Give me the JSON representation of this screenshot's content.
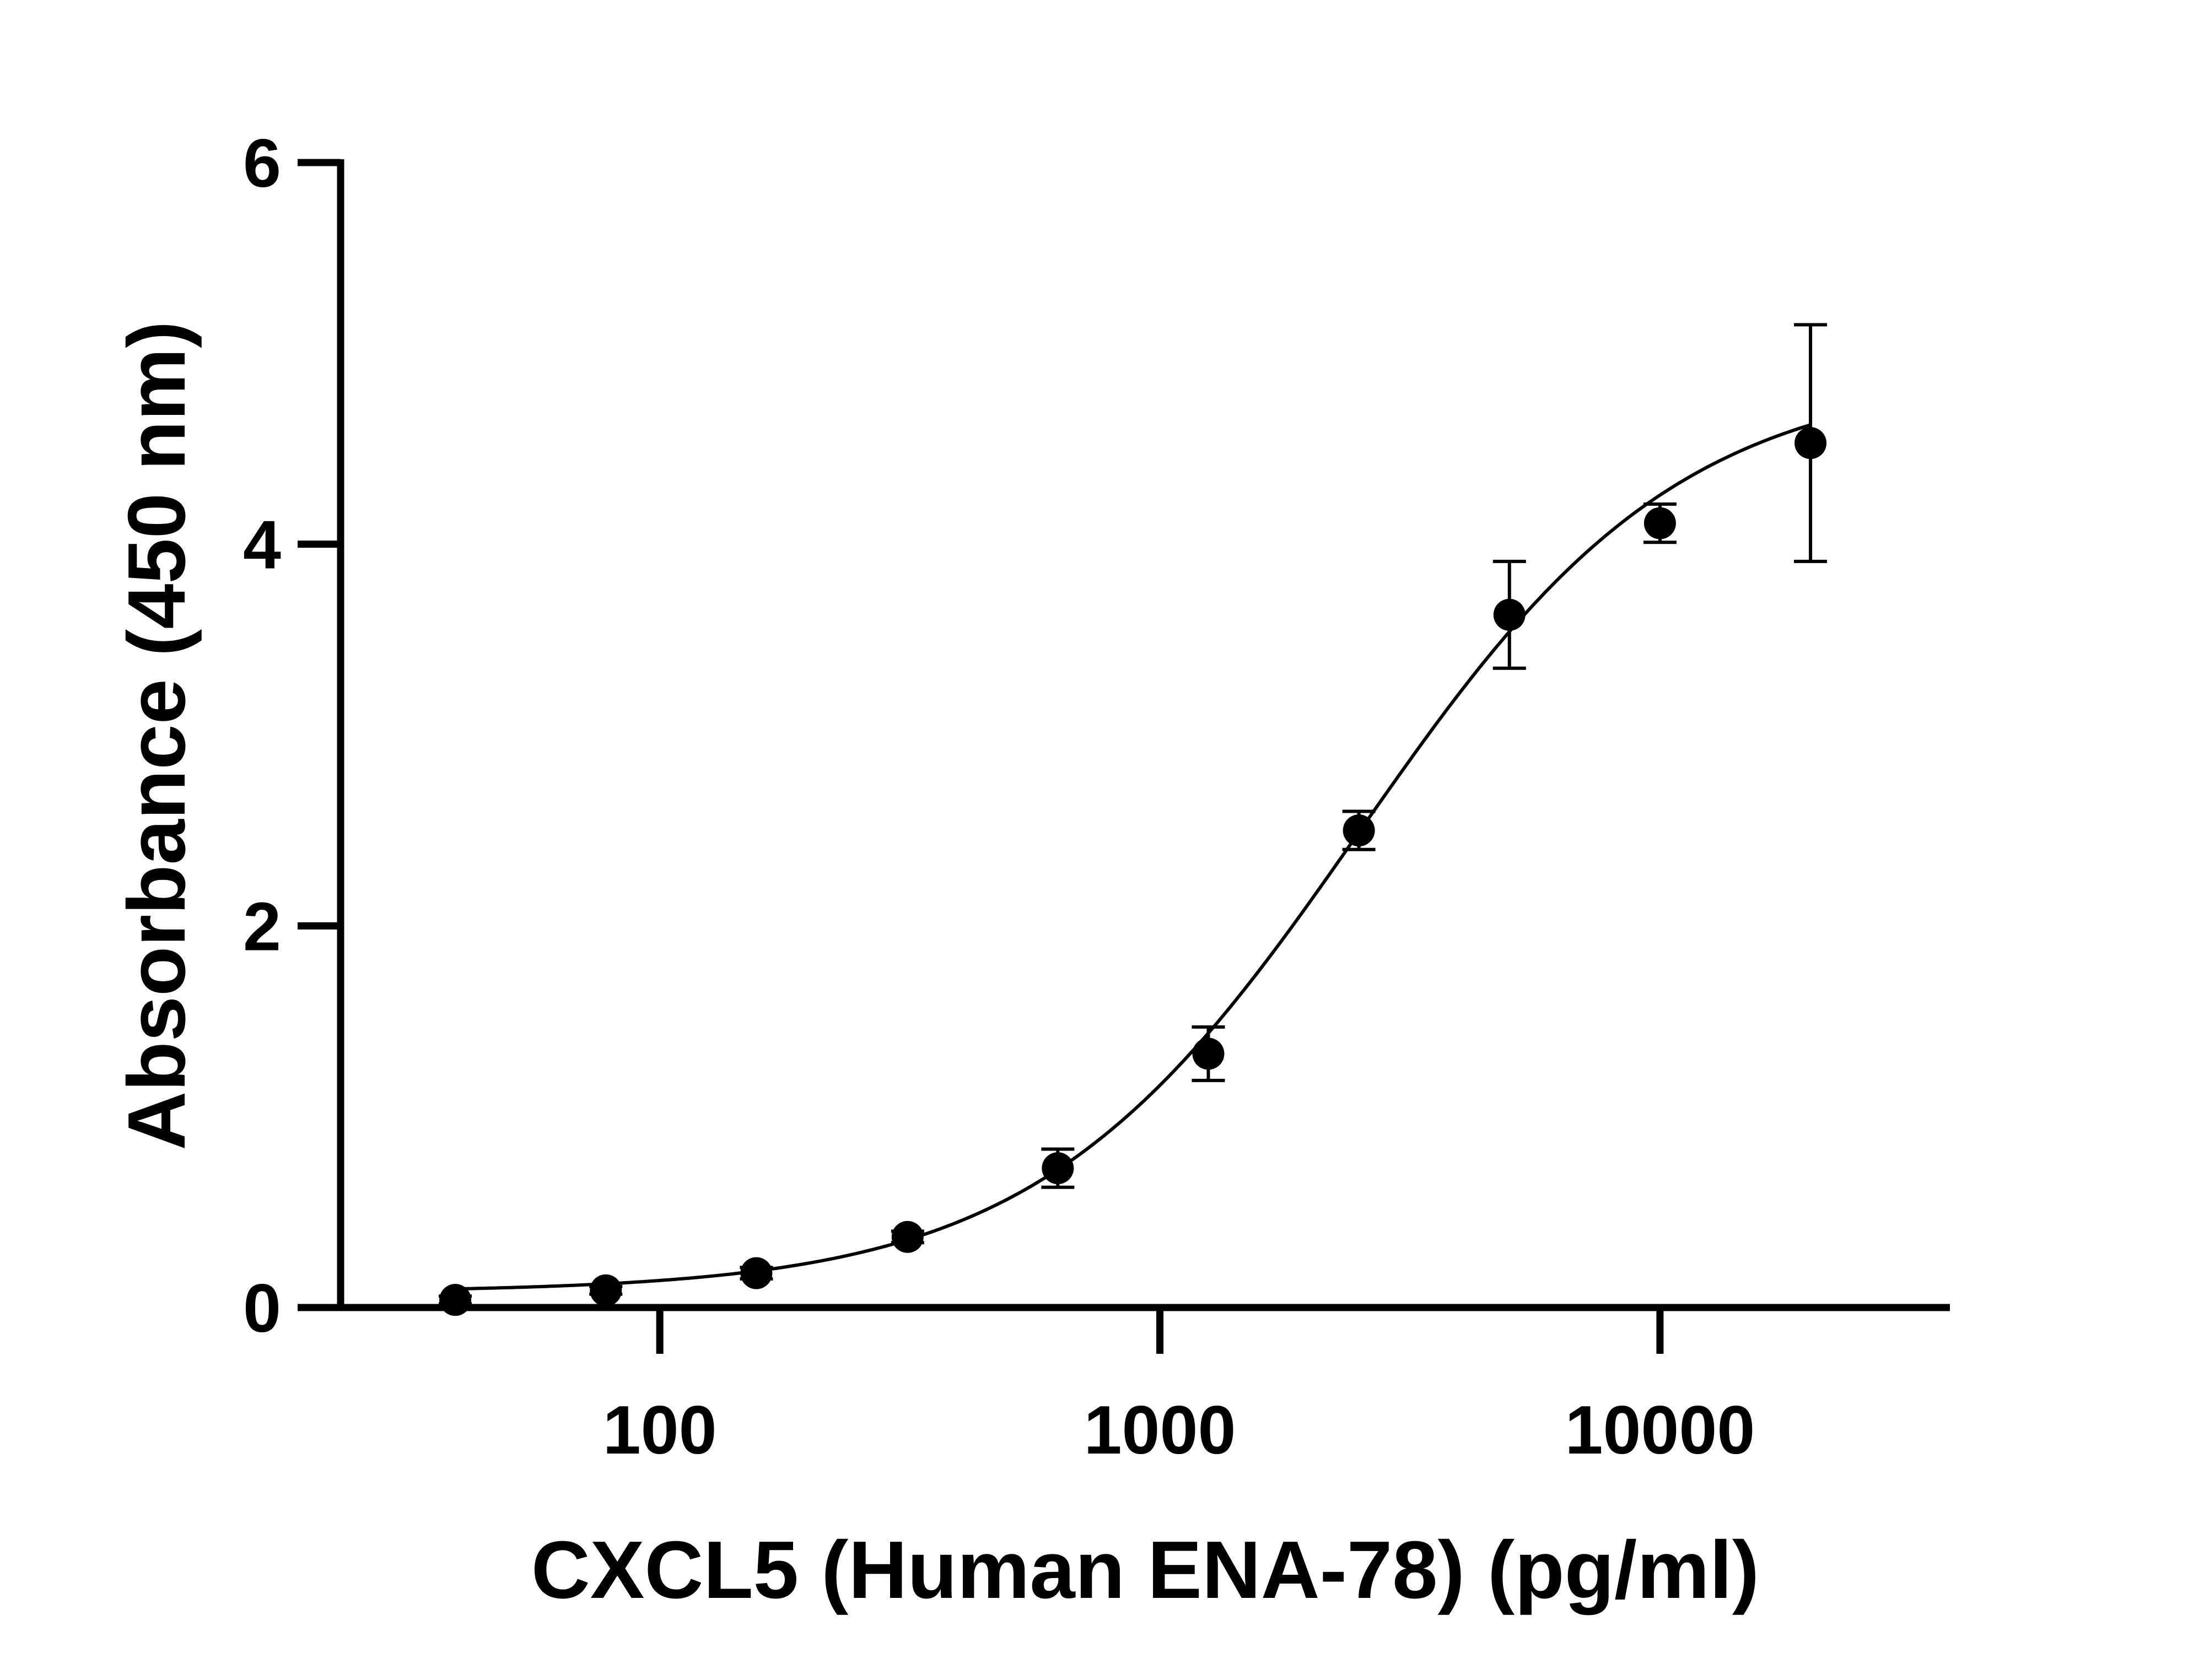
{
  "chart_data": {
    "type": "scatter",
    "title": "",
    "xlabel": "CXCL5 (Human ENA-78) (pg/ml)",
    "ylabel": "Absorbance (450 nm)",
    "x_scale": "log",
    "xlim": [
      23,
      38000
    ],
    "ylim": [
      0,
      6
    ],
    "x_ticks": [
      100,
      1000,
      10000
    ],
    "x_tick_labels": [
      "100",
      "1000",
      "10000"
    ],
    "y_ticks": [
      0,
      2,
      4,
      6
    ],
    "y_tick_labels": [
      "0",
      "2",
      "4",
      "6"
    ],
    "grid": false,
    "legend": "none",
    "series": [
      {
        "points": [
          {
            "x": 39,
            "y": 0.04,
            "err": 0.02
          },
          {
            "x": 78,
            "y": 0.09,
            "err": 0.02
          },
          {
            "x": 156,
            "y": 0.18,
            "err": 0.03
          },
          {
            "x": 313,
            "y": 0.37,
            "err": 0.03
          },
          {
            "x": 625,
            "y": 0.73,
            "err": 0.1
          },
          {
            "x": 1250,
            "y": 1.33,
            "err": 0.14
          },
          {
            "x": 2500,
            "y": 2.5,
            "err": 0.1
          },
          {
            "x": 5000,
            "y": 3.63,
            "err": 0.28
          },
          {
            "x": 10000,
            "y": 4.11,
            "err": 0.1
          },
          {
            "x": 20000,
            "y": 4.53,
            "err": 0.62
          }
        ]
      }
    ],
    "fit": {
      "model": "4PL",
      "bottom": 0.08,
      "top": 4.9,
      "ec50": 2500,
      "hill": 1.35,
      "x_from": 39,
      "x_to": 20000
    }
  }
}
